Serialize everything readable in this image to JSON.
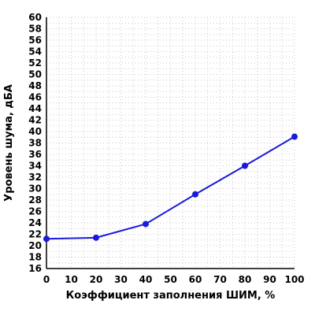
{
  "chart_data": {
    "type": "line",
    "xlabel": "Коэффициент заполнения ШИМ, %",
    "ylabel": "Уровень шума, дБА",
    "xlim": [
      0,
      100
    ],
    "ylim": [
      16,
      60
    ],
    "x_ticks": [
      0,
      10,
      20,
      30,
      40,
      50,
      60,
      70,
      80,
      90,
      100
    ],
    "y_ticks": [
      16,
      18,
      20,
      22,
      24,
      26,
      28,
      30,
      32,
      34,
      36,
      38,
      40,
      42,
      44,
      46,
      48,
      50,
      52,
      54,
      56,
      58,
      60
    ],
    "grid": true,
    "grid_style": "dotted",
    "series": [
      {
        "x": [
          0,
          20,
          40,
          60,
          80,
          100
        ],
        "y": [
          21.2,
          21.4,
          23.8,
          29.0,
          34.0,
          39.1
        ],
        "color": "#1a1adc"
      }
    ]
  }
}
